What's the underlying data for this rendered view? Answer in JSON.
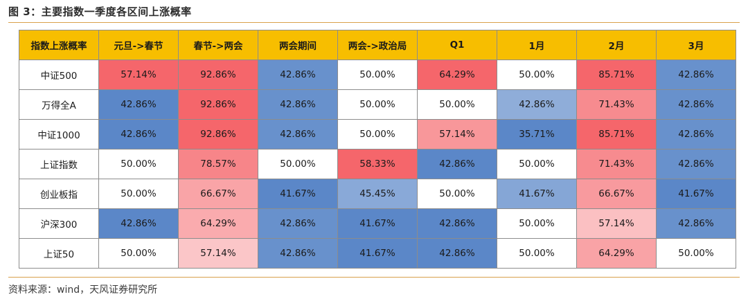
{
  "figure": {
    "title": "图 3：主要指数一季度各区间上涨概率",
    "source": "资料来源：wind，天风证券研究所"
  },
  "colors": {
    "header_bg": "#f7be00",
    "rule": "#d9a04a",
    "high": "#f5666b",
    "mid": "#ffffff",
    "low": "#5b87c8"
  },
  "chart_data": {
    "type": "heatmap",
    "title": "图 3：主要指数一季度各区间上涨概率",
    "corner_label": "指数上涨概率",
    "columns": [
      "元旦->春节",
      "春节->两会",
      "两会期间",
      "两会->政治局",
      "Q1",
      "1月",
      "2月",
      "3月"
    ],
    "rows": [
      "中证500",
      "万得全A",
      "中证1000",
      "上证指数",
      "创业板指",
      "沪深300",
      "上证50"
    ],
    "values": [
      [
        "57.14%",
        "92.86%",
        "42.86%",
        "50.00%",
        "64.29%",
        "50.00%",
        "85.71%",
        "42.86%"
      ],
      [
        "42.86%",
        "92.86%",
        "42.86%",
        "50.00%",
        "50.00%",
        "42.86%",
        "71.43%",
        "42.86%"
      ],
      [
        "42.86%",
        "92.86%",
        "42.86%",
        "50.00%",
        "57.14%",
        "35.71%",
        "85.71%",
        "42.86%"
      ],
      [
        "50.00%",
        "78.57%",
        "50.00%",
        "58.33%",
        "42.86%",
        "50.00%",
        "71.43%",
        "42.86%"
      ],
      [
        "50.00%",
        "66.67%",
        "41.67%",
        "45.45%",
        "50.00%",
        "41.67%",
        "66.67%",
        "41.67%"
      ],
      [
        "42.86%",
        "64.29%",
        "42.86%",
        "41.67%",
        "42.86%",
        "50.00%",
        "57.14%",
        "42.86%"
      ],
      [
        "50.00%",
        "57.14%",
        "42.86%",
        "41.67%",
        "42.86%",
        "50.00%",
        "64.29%",
        "50.00%"
      ]
    ]
  }
}
